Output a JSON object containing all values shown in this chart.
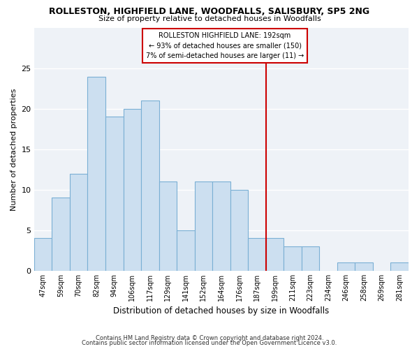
{
  "title": "ROLLESTON, HIGHFIELD LANE, WOODFALLS, SALISBURY, SP5 2NG",
  "subtitle": "Size of property relative to detached houses in Woodfalls",
  "xlabel": "Distribution of detached houses by size in Woodfalls",
  "ylabel": "Number of detached properties",
  "categories": [
    "47sqm",
    "59sqm",
    "70sqm",
    "82sqm",
    "94sqm",
    "106sqm",
    "117sqm",
    "129sqm",
    "141sqm",
    "152sqm",
    "164sqm",
    "176sqm",
    "187sqm",
    "199sqm",
    "211sqm",
    "223sqm",
    "234sqm",
    "246sqm",
    "258sqm",
    "269sqm",
    "281sqm"
  ],
  "values": [
    4,
    9,
    12,
    24,
    19,
    20,
    21,
    11,
    5,
    11,
    11,
    10,
    4,
    4,
    3,
    3,
    0,
    1,
    1,
    0,
    1
  ],
  "bar_color": "#ccdff0",
  "bar_edge_color": "#7aafd4",
  "marker_line_color": "#cc0000",
  "annotation_line1": "ROLLESTON HIGHFIELD LANE: 192sqm",
  "annotation_line2": "← 93% of detached houses are smaller (150)",
  "annotation_line3": "7% of semi-detached houses are larger (11) →",
  "ylim": [
    0,
    30
  ],
  "yticks": [
    0,
    5,
    10,
    15,
    20,
    25
  ],
  "footer1": "Contains HM Land Registry data © Crown copyright and database right 2024.",
  "footer2": "Contains public sector information licensed under the Open Government Licence v3.0.",
  "bg_color": "#ffffff",
  "plot_bg_color": "#eef2f7"
}
